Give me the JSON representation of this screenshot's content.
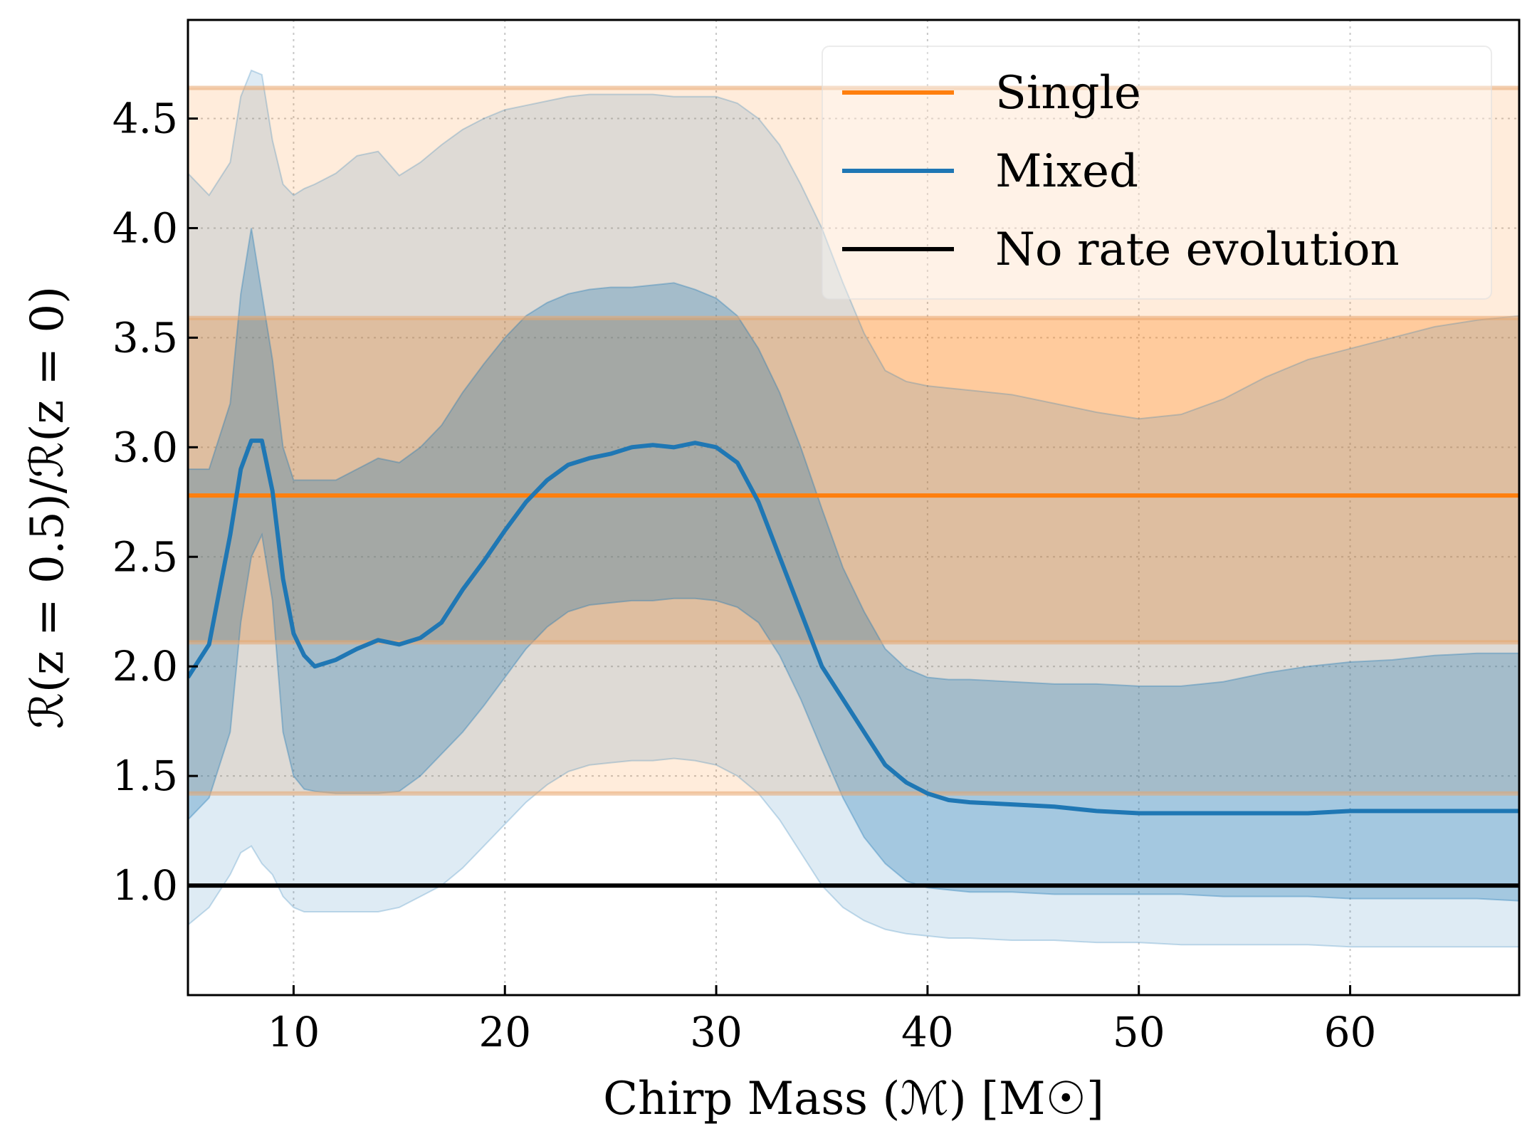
{
  "chart_data": {
    "type": "line",
    "xlabel": "Chirp Mass (ℳ) [M☉]",
    "ylabel": "ℛ(z = 0.5)/ℛ(z = 0)",
    "xlim": [
      5,
      68
    ],
    "ylim": [
      0.5,
      4.95
    ],
    "xticks": [
      10,
      20,
      30,
      40,
      50,
      60
    ],
    "yticks": [
      1.0,
      1.5,
      2.0,
      2.5,
      3.0,
      3.5,
      4.0,
      4.5
    ],
    "grid": true,
    "legend_position": "top-right",
    "legend": [
      {
        "label": "Single",
        "color": "#ff7f0e"
      },
      {
        "label": "Mixed",
        "color": "#1f77b4"
      },
      {
        "label": "No rate evolution",
        "color": "#000000"
      }
    ],
    "single": {
      "median": 2.78,
      "lines": [
        1.42,
        2.11,
        3.59,
        4.64
      ],
      "outer_band": [
        1.42,
        4.64
      ],
      "inner_band": [
        2.11,
        3.59
      ],
      "color": "#ff7f0e"
    },
    "reference_line": 1.0,
    "series": [
      {
        "name": "Mixed",
        "color": "#1f77b4",
        "x": [
          5,
          6,
          7,
          7.5,
          8,
          8.5,
          9,
          9.5,
          10,
          10.5,
          11,
          12,
          13,
          14,
          15,
          16,
          17,
          18,
          19,
          20,
          21,
          22,
          23,
          24,
          25,
          26,
          27,
          28,
          29,
          30,
          31,
          32,
          33,
          34,
          35,
          36,
          37,
          38,
          39,
          40,
          41,
          42,
          44,
          46,
          48,
          50,
          52,
          54,
          56,
          58,
          60,
          62,
          64,
          66,
          68
        ],
        "median": [
          1.95,
          2.1,
          2.6,
          2.9,
          3.03,
          3.03,
          2.8,
          2.4,
          2.15,
          2.05,
          2.0,
          2.03,
          2.08,
          2.12,
          2.1,
          2.13,
          2.2,
          2.35,
          2.48,
          2.62,
          2.75,
          2.85,
          2.92,
          2.95,
          2.97,
          3.0,
          3.01,
          3.0,
          3.02,
          3.0,
          2.93,
          2.75,
          2.5,
          2.25,
          2.0,
          1.85,
          1.7,
          1.55,
          1.47,
          1.42,
          1.39,
          1.38,
          1.37,
          1.36,
          1.34,
          1.33,
          1.33,
          1.33,
          1.33,
          1.33,
          1.34,
          1.34,
          1.34,
          1.34,
          1.34
        ],
        "inner_upper": [
          2.9,
          2.9,
          3.2,
          3.7,
          4.0,
          3.7,
          3.4,
          3.0,
          2.85,
          2.85,
          2.85,
          2.85,
          2.9,
          2.95,
          2.93,
          3.0,
          3.1,
          3.25,
          3.38,
          3.5,
          3.6,
          3.66,
          3.7,
          3.72,
          3.73,
          3.73,
          3.74,
          3.75,
          3.72,
          3.68,
          3.6,
          3.45,
          3.25,
          3.0,
          2.72,
          2.45,
          2.25,
          2.08,
          1.99,
          1.95,
          1.94,
          1.94,
          1.93,
          1.92,
          1.92,
          1.91,
          1.91,
          1.93,
          1.97,
          2.0,
          2.02,
          2.03,
          2.05,
          2.06,
          2.06
        ],
        "inner_lower": [
          1.3,
          1.4,
          1.7,
          2.2,
          2.5,
          2.6,
          2.3,
          1.7,
          1.5,
          1.44,
          1.43,
          1.42,
          1.42,
          1.42,
          1.43,
          1.5,
          1.6,
          1.7,
          1.82,
          1.95,
          2.08,
          2.18,
          2.25,
          2.28,
          2.29,
          2.3,
          2.3,
          2.31,
          2.31,
          2.3,
          2.27,
          2.2,
          2.05,
          1.85,
          1.62,
          1.4,
          1.22,
          1.1,
          1.02,
          0.99,
          0.98,
          0.97,
          0.97,
          0.96,
          0.96,
          0.96,
          0.96,
          0.95,
          0.95,
          0.95,
          0.94,
          0.94,
          0.94,
          0.94,
          0.93
        ],
        "outer_upper": [
          4.25,
          4.15,
          4.3,
          4.6,
          4.72,
          4.7,
          4.4,
          4.2,
          4.15,
          4.18,
          4.2,
          4.25,
          4.33,
          4.35,
          4.24,
          4.3,
          4.38,
          4.45,
          4.5,
          4.54,
          4.56,
          4.58,
          4.6,
          4.61,
          4.61,
          4.61,
          4.61,
          4.6,
          4.6,
          4.6,
          4.57,
          4.5,
          4.38,
          4.2,
          4.0,
          3.75,
          3.52,
          3.35,
          3.3,
          3.28,
          3.27,
          3.26,
          3.24,
          3.2,
          3.16,
          3.13,
          3.15,
          3.22,
          3.32,
          3.4,
          3.45,
          3.5,
          3.55,
          3.58,
          3.6
        ],
        "outer_lower": [
          0.82,
          0.9,
          1.05,
          1.15,
          1.18,
          1.1,
          1.05,
          0.95,
          0.9,
          0.88,
          0.88,
          0.88,
          0.88,
          0.88,
          0.9,
          0.95,
          1.0,
          1.08,
          1.18,
          1.28,
          1.38,
          1.46,
          1.52,
          1.55,
          1.56,
          1.57,
          1.57,
          1.58,
          1.57,
          1.55,
          1.5,
          1.42,
          1.3,
          1.15,
          1.0,
          0.9,
          0.84,
          0.8,
          0.78,
          0.77,
          0.76,
          0.76,
          0.75,
          0.75,
          0.74,
          0.74,
          0.73,
          0.73,
          0.73,
          0.73,
          0.72,
          0.72,
          0.72,
          0.72,
          0.72
        ]
      }
    ]
  }
}
